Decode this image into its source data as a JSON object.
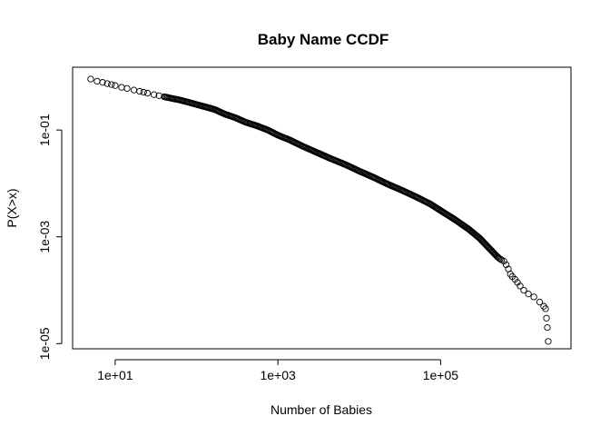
{
  "chart_data": {
    "type": "scatter",
    "title": "Baby Name CCDF",
    "xlabel": "Number of Babies",
    "ylabel": "P(X>x)",
    "x_scale": "log",
    "y_scale": "log",
    "xlim": [
      3,
      4000000
    ],
    "ylim": [
      8e-06,
      1.5
    ],
    "x_ticks": [
      {
        "value": 10,
        "label": "1e+01"
      },
      {
        "value": 1000,
        "label": "1e+03"
      },
      {
        "value": 100000,
        "label": "1e+05"
      }
    ],
    "y_ticks": [
      {
        "value": 0.1,
        "label": "1e-01"
      },
      {
        "value": 0.001,
        "label": "1e-03"
      },
      {
        "value": 1e-05,
        "label": "1e-05"
      }
    ],
    "grid": false,
    "legend": null,
    "marker": "open-circle",
    "colors": {
      "marker": "#000000",
      "frame": "#000000",
      "background": "#ffffff"
    },
    "series": [
      {
        "points": [
          [
            5,
            0.9
          ],
          [
            6,
            0.82
          ],
          [
            7,
            0.78
          ],
          [
            8,
            0.74
          ],
          [
            9,
            0.71
          ],
          [
            10,
            0.68
          ],
          [
            12,
            0.63
          ],
          [
            14,
            0.6
          ],
          [
            17,
            0.56
          ],
          [
            20,
            0.53
          ],
          [
            25,
            0.49
          ],
          [
            30,
            0.46
          ],
          [
            40,
            0.42
          ],
          [
            50,
            0.39
          ],
          [
            60,
            0.37
          ],
          [
            80,
            0.33
          ],
          [
            100,
            0.3
          ],
          [
            130,
            0.27
          ],
          [
            170,
            0.24
          ],
          [
            220,
            0.2
          ],
          [
            300,
            0.17
          ],
          [
            400,
            0.14
          ],
          [
            550,
            0.12
          ],
          [
            750,
            0.1
          ],
          [
            1000,
            0.08
          ],
          [
            1400,
            0.065
          ],
          [
            2000,
            0.05
          ],
          [
            3000,
            0.038
          ],
          [
            4500,
            0.029
          ],
          [
            7000,
            0.022
          ],
          [
            10000,
            0.017
          ],
          [
            15000,
            0.013
          ],
          [
            22000,
            0.0098
          ],
          [
            33000,
            0.0075
          ],
          [
            50000,
            0.0056
          ],
          [
            75000,
            0.0041
          ],
          [
            100000,
            0.0031
          ],
          [
            150000,
            0.0021
          ],
          [
            220000,
            0.0014
          ],
          [
            300000,
            0.00095
          ],
          [
            400000,
            0.0006
          ],
          [
            480000,
            0.00045
          ],
          [
            520000,
            0.0004
          ],
          [
            560000,
            0.00037
          ],
          [
            600000,
            0.00035
          ],
          [
            640000,
            0.0003
          ],
          [
            680000,
            0.00025
          ],
          [
            720000,
            0.0002
          ],
          [
            760000,
            0.00018
          ],
          [
            820000,
            0.00016
          ],
          [
            880000,
            0.00014
          ],
          [
            950000,
            0.00012
          ],
          [
            1050000,
            0.0001
          ],
          [
            1200000,
            8.5e-05
          ],
          [
            1400000,
            7.5e-05
          ],
          [
            1650000,
            6e-05
          ],
          [
            1850000,
            5e-05
          ],
          [
            1950000,
            4.5e-05
          ],
          [
            2000000,
            3e-05
          ],
          [
            2050000,
            2e-05
          ],
          [
            2100000,
            1.1e-05
          ]
        ]
      }
    ]
  }
}
